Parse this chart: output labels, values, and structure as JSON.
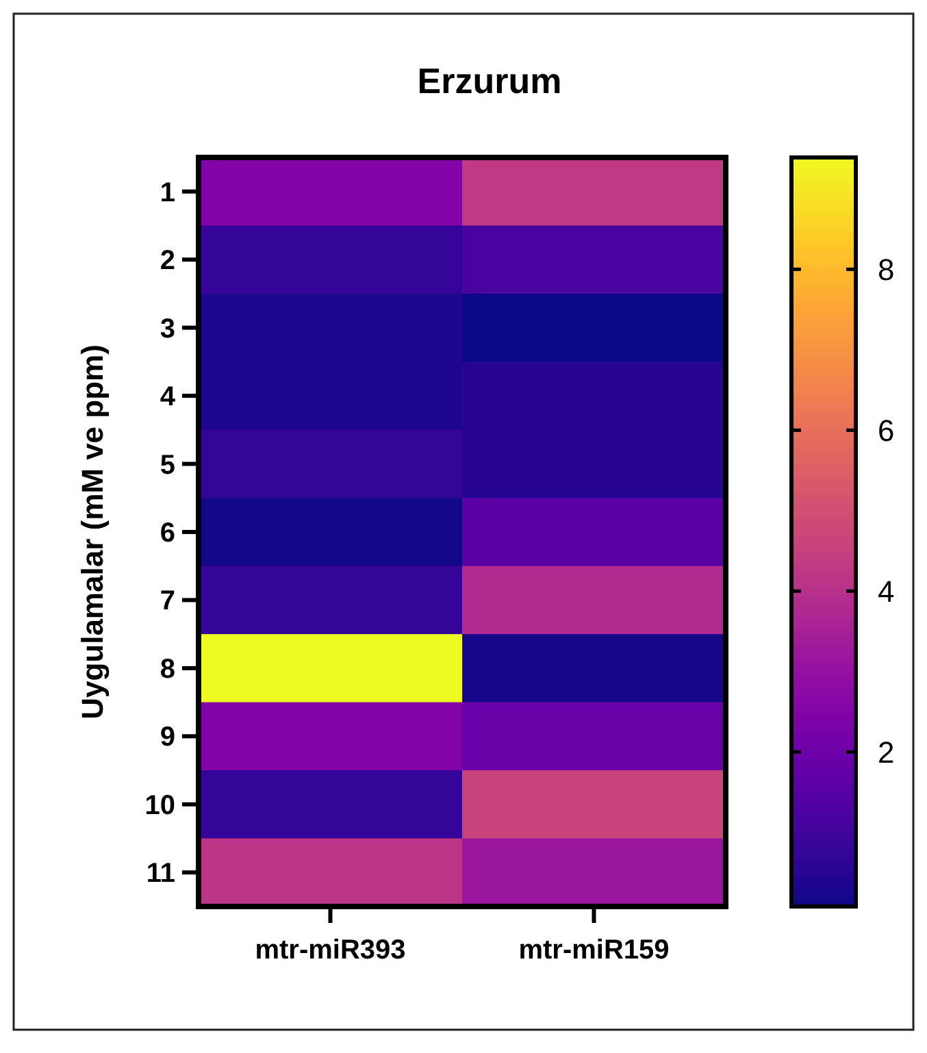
{
  "chart_data": {
    "type": "heatmap",
    "title": "Erzurum",
    "ylabel": "Uygulamalar (mM ve ppm)",
    "categories": [
      "mtr-miR393",
      "mtr-miR159"
    ],
    "y_categories": [
      "1",
      "2",
      "3",
      "4",
      "5",
      "6",
      "7",
      "8",
      "9",
      "10",
      "11"
    ],
    "cells": [
      [
        2.5,
        4.27
      ],
      [
        0.8,
        1.2
      ],
      [
        0.36,
        0.08
      ],
      [
        0.36,
        0.45
      ],
      [
        0.73,
        0.45
      ],
      [
        0.17,
        1.57
      ],
      [
        0.8,
        3.8
      ],
      [
        9.39,
        0.22
      ],
      [
        2.5,
        1.94
      ],
      [
        0.8,
        4.64
      ],
      [
        4.18,
        3.15
      ]
    ],
    "clim": [
      0.08,
      9.39
    ],
    "cticks": [
      2,
      4,
      6,
      8
    ]
  }
}
